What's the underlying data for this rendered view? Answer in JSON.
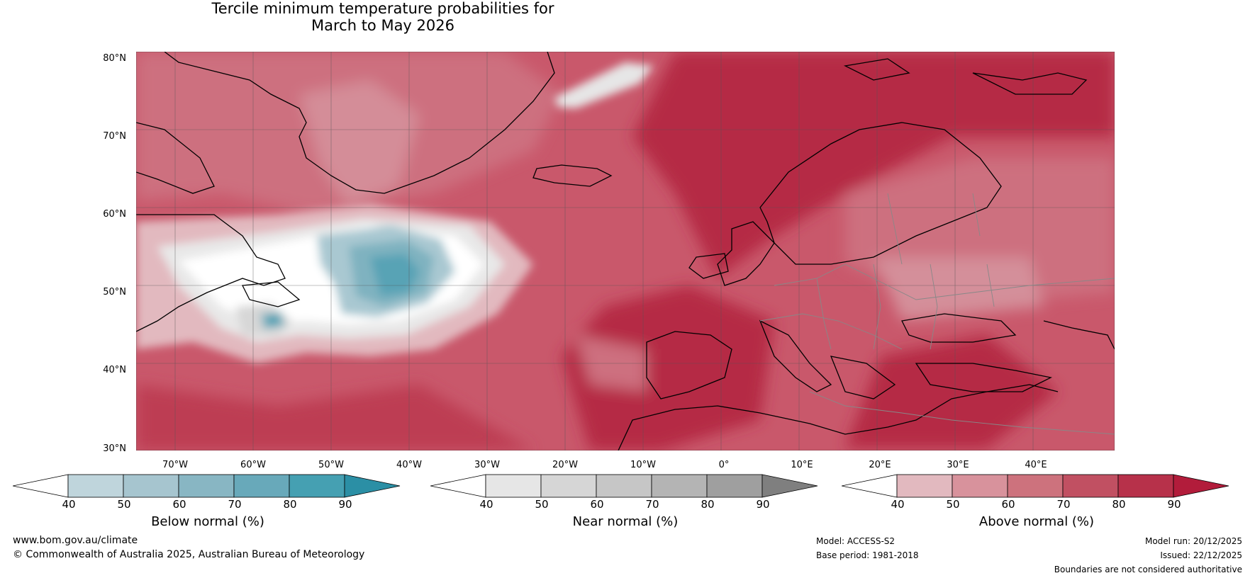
{
  "title": {
    "line1": "Tercile minimum temperature probabilities for",
    "line2": "March to May 2026"
  },
  "axes": {
    "lat_labels": [
      "80°N",
      "70°N",
      "60°N",
      "50°N",
      "40°N",
      "30°N"
    ],
    "lon_labels": [
      "70°W",
      "60°W",
      "50°W",
      "40°W",
      "30°W",
      "20°W",
      "10°W",
      "0°",
      "10°E",
      "20°E",
      "30°E",
      "40°E"
    ]
  },
  "colorbars": [
    {
      "label": "Below normal (%)",
      "ticks": [
        "40",
        "50",
        "60",
        "70",
        "80",
        "90"
      ],
      "colors": [
        "#ffffff",
        "#bfd5dc",
        "#a6c5cf",
        "#88b6c3",
        "#68a9ba",
        "#45a0b2",
        "#2b8fa5"
      ]
    },
    {
      "label": "Near normal (%)",
      "ticks": [
        "40",
        "50",
        "60",
        "70",
        "80",
        "90"
      ],
      "colors": [
        "#ffffff",
        "#e6e6e6",
        "#d6d6d6",
        "#c6c6c6",
        "#b4b4b4",
        "#9f9f9f",
        "#7f7f7f"
      ]
    },
    {
      "label": "Above normal (%)",
      "ticks": [
        "40",
        "50",
        "60",
        "70",
        "80",
        "90"
      ],
      "colors": [
        "#ffffff",
        "#e2b9bf",
        "#d8929c",
        "#cd727d",
        "#c15062",
        "#b7314a",
        "#b21c3b"
      ]
    }
  ],
  "footer": {
    "website": "www.bom.gov.au/climate",
    "copyright": "© Commonwealth of Australia 2025, Australian Bureau of Meteorology",
    "model": "Model: ACCESS-S2",
    "base_period": "Base period: 1981-2018",
    "model_run": "Model run: 20/12/2025",
    "issued": "Issued: 22/12/2025",
    "disclaimer": "Boundaries are not considered authoritative"
  }
}
